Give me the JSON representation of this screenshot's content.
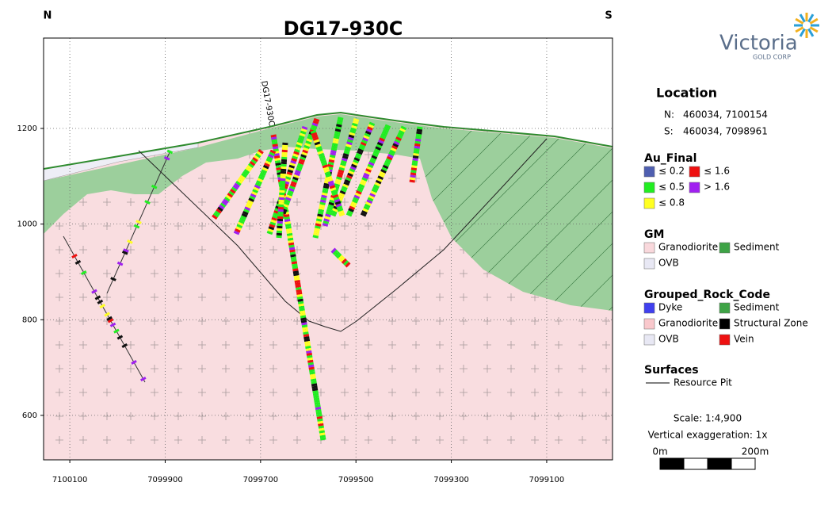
{
  "map": {
    "title": "DG17-930C",
    "north": "N",
    "south": "S",
    "hole_label": "DG17-930C",
    "xlim": [
      7100155,
      7098962
    ],
    "ylim": [
      507,
      1389
    ],
    "xticks": [
      7100100,
      7099900,
      7099700,
      7099500,
      7099300,
      7099100
    ],
    "yticks": [
      1200,
      1000,
      800,
      600
    ],
    "grid": true
  },
  "logo": {
    "name": "Victoria",
    "sub": "GOLD CORP"
  },
  "location": {
    "title": "Location",
    "rows": [
      {
        "key": "N:",
        "value": "460034, 7100154"
      },
      {
        "key": "S:",
        "value": "460034, 7098961"
      }
    ]
  },
  "legends": [
    {
      "title": "Au_Final",
      "items": [
        {
          "label": "≤ 0.2",
          "color": "#4f5fb0"
        },
        {
          "label": "≤ 1.6",
          "color": "#ee1111"
        },
        {
          "label": "≤ 0.5",
          "color": "#22ee22"
        },
        {
          "label": "> 1.6",
          "color": "#a020f0"
        },
        {
          "label": "≤ 0.8",
          "color": "#ffff22"
        }
      ]
    },
    {
      "title": "GM",
      "items": [
        {
          "label": "Granodiorite",
          "color": "#f9d8dc"
        },
        {
          "label": "Sediment",
          "color": "#3ea346"
        },
        {
          "label": "OVB",
          "color": "#e8e8f4"
        }
      ]
    },
    {
      "title": "Grouped_Rock_Code",
      "items": [
        {
          "label": "Dyke",
          "color": "#4040ee"
        },
        {
          "label": "Sediment",
          "color": "#3ea346"
        },
        {
          "label": "Granodiorite",
          "color": "#f9c8cc"
        },
        {
          "label": "Structural Zone",
          "color": "#000000"
        },
        {
          "label": "OVB",
          "color": "#e8e8f4"
        },
        {
          "label": "Vein",
          "color": "#ee1111"
        }
      ]
    },
    {
      "title": "Surfaces",
      "items": [
        {
          "label": "Resource Pit",
          "color": "#000000"
        }
      ]
    }
  ],
  "scale": {
    "text": "Scale: 1:4,900",
    "exaggeration": "Vertical exaggeration: 1x",
    "start": "0m",
    "end": "200m"
  }
}
